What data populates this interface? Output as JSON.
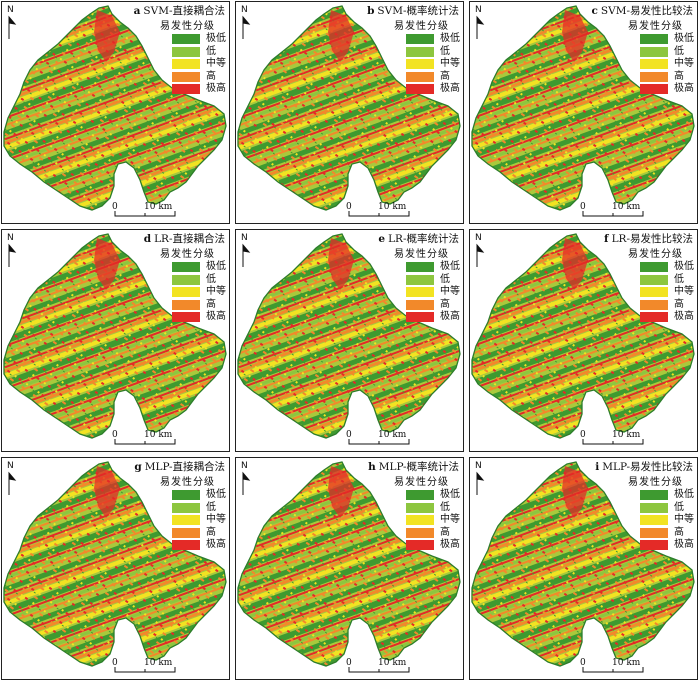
{
  "legend": {
    "title": "易发性分级",
    "classes": [
      {
        "label": "极低",
        "color": "#3e9a30"
      },
      {
        "label": "低",
        "color": "#8dc63f"
      },
      {
        "label": "中等",
        "color": "#f2e322"
      },
      {
        "label": "高",
        "color": "#f2892a"
      },
      {
        "label": "极高",
        "color": "#e42a27"
      }
    ]
  },
  "north_label": "N",
  "scale": {
    "start": "0",
    "end": "10 km"
  },
  "panels": [
    {
      "letter": "a",
      "title": "SVM-直接耦合法"
    },
    {
      "letter": "b",
      "title": "SVM-概率统计法"
    },
    {
      "letter": "c",
      "title": "SVM-易发性比较法"
    },
    {
      "letter": "d",
      "title": "LR-直接耦合法"
    },
    {
      "letter": "e",
      "title": "LR-概率统计法"
    },
    {
      "letter": "f",
      "title": "LR-易发性比较法"
    },
    {
      "letter": "g",
      "title": "MLP-直接耦合法"
    },
    {
      "letter": "h",
      "title": "MLP-概率统计法"
    },
    {
      "letter": "i",
      "title": "MLP-易发性比较法"
    }
  ]
}
